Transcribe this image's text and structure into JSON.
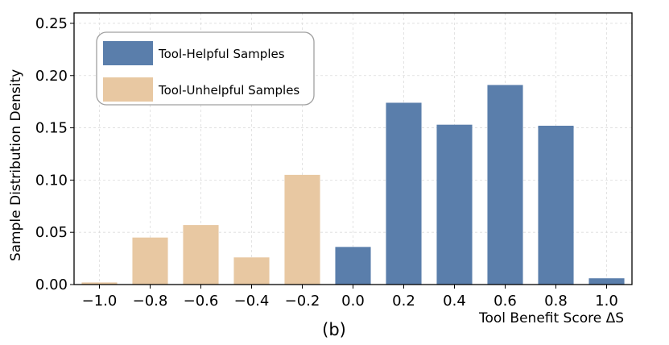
{
  "chart_data": {
    "type": "bar",
    "xlabel": "Tool Benefit Score ΔS",
    "ylabel": "Sample Distribution Density",
    "caption": "(b)",
    "ylim": [
      0,
      0.26
    ],
    "xlim": [
      -1.1,
      1.1
    ],
    "grid": true,
    "legend_position": "top-left",
    "x_ticks": [
      -1.0,
      -0.8,
      -0.6,
      -0.4,
      -0.2,
      0.0,
      0.2,
      0.4,
      0.6,
      0.8,
      1.0
    ],
    "x_tick_labels": [
      "−1.0",
      "−0.8",
      "−0.6",
      "−0.4",
      "−0.2",
      "0.0",
      "0.2",
      "0.4",
      "0.6",
      "0.8",
      "1.0"
    ],
    "y_ticks": [
      0.0,
      0.05,
      0.1,
      0.15,
      0.2,
      0.25
    ],
    "y_tick_labels": [
      "0.00",
      "0.05",
      "0.10",
      "0.15",
      "0.20",
      "0.25"
    ],
    "series": [
      {
        "name": "Tool-Helpful Samples",
        "color": "#5a7eab",
        "x": [
          0.0,
          0.2,
          0.4,
          0.6,
          0.8,
          1.0
        ],
        "values": [
          0.036,
          0.174,
          0.153,
          0.191,
          0.152,
          0.006
        ]
      },
      {
        "name": "Tool-Unhelpful Samples",
        "color": "#e8c8a2",
        "x": [
          -1.0,
          -0.8,
          -0.6,
          -0.4,
          -0.2
        ],
        "values": [
          0.002,
          0.045,
          0.057,
          0.026,
          0.105
        ]
      }
    ]
  }
}
